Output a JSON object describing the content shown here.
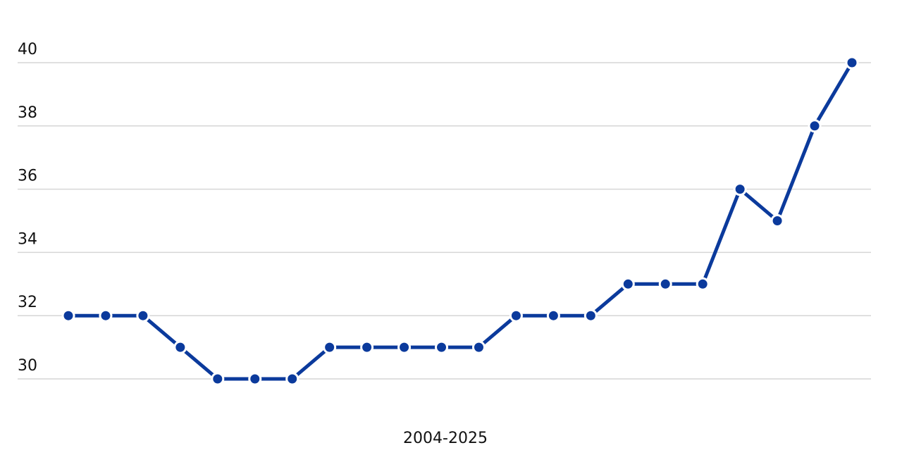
{
  "chart_data": {
    "type": "line",
    "x_label": "2004-2025",
    "categories": [
      null,
      null,
      null,
      null,
      null,
      null,
      null,
      null,
      null,
      null,
      null,
      null,
      null,
      null,
      null,
      null,
      null,
      null,
      null,
      null,
      null,
      null
    ],
    "series": [
      {
        "color": "#0b3a9c",
        "values": [
          32,
          32,
          32,
          31,
          30,
          30,
          30,
          31,
          31,
          31,
          31,
          31,
          32,
          32,
          32,
          33,
          33,
          33,
          36,
          35,
          38,
          40
        ]
      }
    ],
    "ylim": [
      30,
      40
    ],
    "yticks": [
      30,
      32,
      34,
      36,
      38,
      40
    ],
    "grid": true
  }
}
